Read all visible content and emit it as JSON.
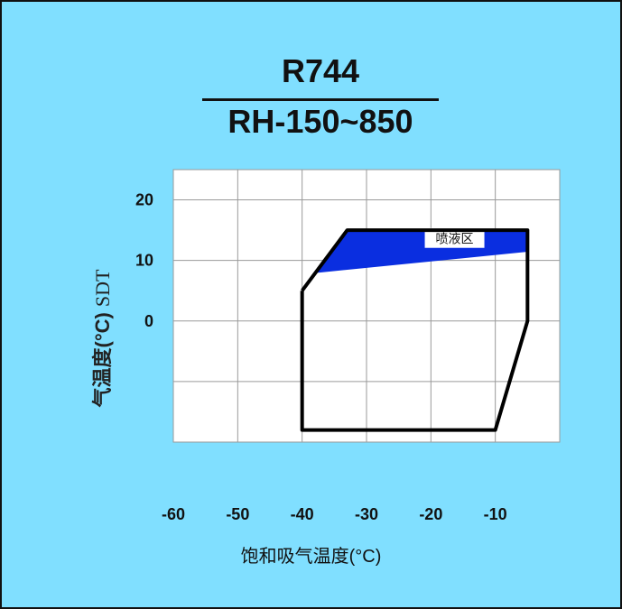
{
  "chart_data": {
    "type": "line",
    "title": "R744",
    "subtitle": "RH-150~850",
    "xlabel": "饱和吸气温度(°C)",
    "ylabel": "气温度(°C)",
    "ylabel_suffix": "SDT",
    "xlim": [
      -60,
      0
    ],
    "ylim": [
      -20,
      25
    ],
    "x_ticks": [
      "-60",
      "-50",
      "-40",
      "-30",
      "-20",
      "-10"
    ],
    "y_ticks": [
      "20",
      "10",
      "0"
    ],
    "grid": true,
    "series": [
      {
        "kind": "envelope",
        "color": "#000000",
        "points": [
          [
            -40,
            5
          ],
          [
            -40,
            -18
          ],
          [
            -10,
            -18
          ],
          [
            -5,
            0
          ],
          [
            -5,
            15
          ],
          [
            -33,
            15
          ],
          [
            -40,
            5
          ]
        ]
      }
    ],
    "regions": [
      {
        "label": "喷液区",
        "color": "#0a2ee0",
        "points": [
          [
            -38,
            8
          ],
          [
            -33,
            15
          ],
          [
            -5,
            15
          ],
          [
            -5,
            11.5
          ]
        ]
      }
    ]
  }
}
